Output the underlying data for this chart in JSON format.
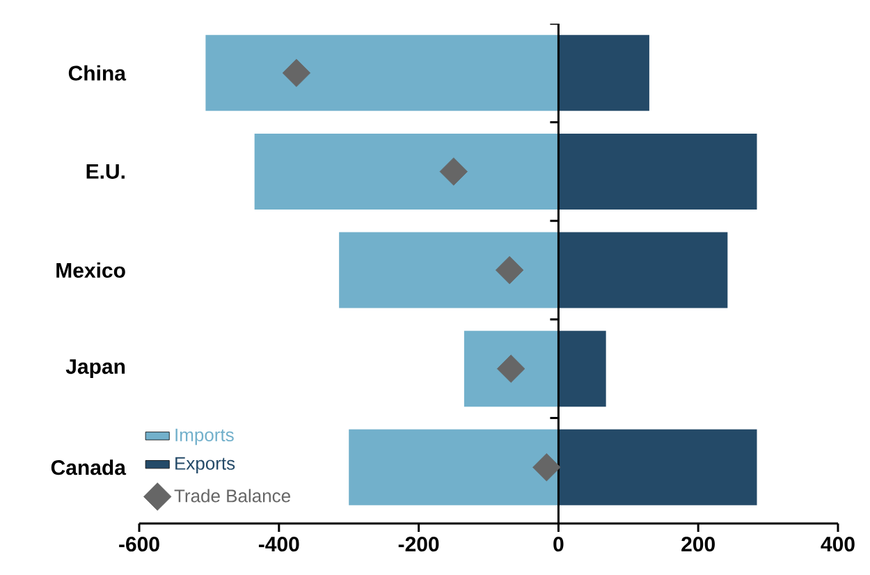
{
  "chart_data": {
    "type": "bar",
    "orientation": "horizontal",
    "categories": [
      "China",
      "E.U.",
      "Mexico",
      "Japan",
      "Canada"
    ],
    "series": [
      {
        "name": "Imports",
        "color": "#72b0cb",
        "values": [
          -505,
          -435,
          -314,
          -135,
          -300
        ]
      },
      {
        "name": "Exports",
        "color": "#244a68",
        "values": [
          130,
          284,
          242,
          68,
          284
        ]
      },
      {
        "name": "Trade Balance",
        "type": "scatter",
        "marker": "diamond",
        "color": "#666666",
        "values": [
          -375,
          -150,
          -70,
          -68,
          -17
        ]
      }
    ],
    "xlim": [
      -600,
      400
    ],
    "xticks": [
      -600,
      -400,
      -200,
      0,
      200,
      400
    ],
    "legend": "bottom left",
    "grid": false,
    "stacked": true,
    "ref_lines": [
      {
        "axis": "x",
        "value": 0,
        "color": "#000000"
      }
    ]
  }
}
